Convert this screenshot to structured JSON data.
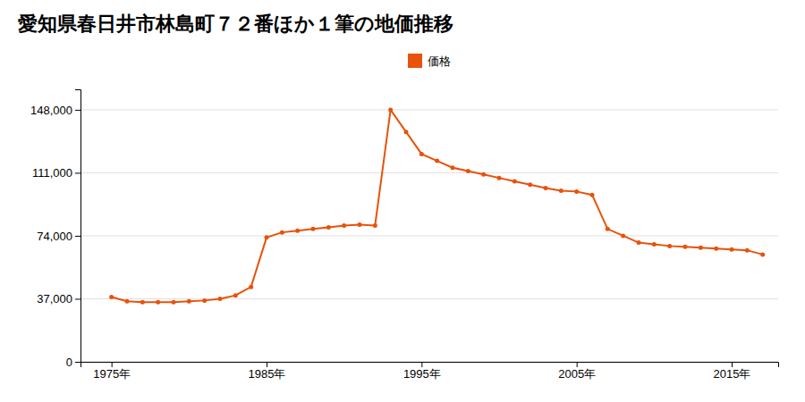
{
  "chart_data": {
    "type": "line",
    "title": "愛知県春日井市林島町７２番ほか１筆の地価推移",
    "x": [
      1975,
      1976,
      1977,
      1978,
      1979,
      1980,
      1981,
      1982,
      1983,
      1984,
      1985,
      1986,
      1987,
      1988,
      1989,
      1990,
      1991,
      1992,
      1993,
      1994,
      1995,
      1996,
      1997,
      1998,
      1999,
      2000,
      2001,
      2002,
      2003,
      2004,
      2005,
      2006,
      2007,
      2008,
      2009,
      2010,
      2011,
      2012,
      2013,
      2014,
      2015,
      2016,
      2017
    ],
    "series": [
      {
        "name": "価格",
        "color": "#E8520A",
        "marker": "circle",
        "values": [
          38000,
          35500,
          35000,
          35000,
          35000,
          35500,
          36000,
          37000,
          39000,
          44000,
          73000,
          76000,
          77000,
          78000,
          79000,
          80000,
          80500,
          80000,
          148000,
          135000,
          122000,
          118000,
          114000,
          112000,
          110000,
          108000,
          106000,
          104000,
          102000,
          100500,
          100000,
          98000,
          78000,
          74000,
          70000,
          69000,
          68000,
          67500,
          67000,
          66500,
          66000,
          65500,
          63000
        ]
      }
    ],
    "xlim": [
      1973,
      2018
    ],
    "xticks": [
      {
        "value": 1975,
        "label": "1975年"
      },
      {
        "value": 1985,
        "label": "1985年"
      },
      {
        "value": 1995,
        "label": "1995年"
      },
      {
        "value": 2005,
        "label": "2005年"
      },
      {
        "value": 2015,
        "label": "2015年"
      }
    ],
    "ylim": [
      0,
      160000
    ],
    "yticks": [
      0,
      {
        "value": 37000,
        "label": "37,000"
      },
      {
        "value": 74000,
        "label": "74,000"
      },
      {
        "value": 111000,
        "label": "111,000"
      },
      {
        "value": 148000,
        "label": "148,000"
      }
    ],
    "grid": true,
    "legend": "top"
  }
}
